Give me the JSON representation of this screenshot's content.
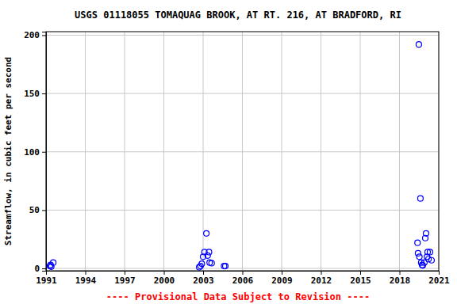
{
  "chart_data": {
    "type": "scatter",
    "title": "USGS 01118055 TOMAQUAG BROOK, AT RT. 216, AT BRADFORD, RI",
    "y_label": "Streamflow, in cubic feet per second",
    "annotations": [
      "---- Provisional Data Subject to Revision ----"
    ],
    "x": [
      1991.3,
      1991.35,
      1991.4,
      1991.55,
      2002.7,
      2002.8,
      2002.9,
      2003.0,
      2003.1,
      2003.25,
      2003.35,
      2003.45,
      2003.5,
      2003.65,
      2004.6,
      2004.7,
      2019.38,
      2019.42,
      2019.48,
      2019.52,
      2019.6,
      2019.66,
      2019.73,
      2019.78,
      2019.9,
      2019.97,
      2020.03,
      2020.1,
      2020.15,
      2020.22,
      2020.33,
      2020.45
    ],
    "values": [
      2,
      3,
      1.5,
      5,
      1,
      2,
      4,
      10,
      14,
      30,
      11,
      14,
      5,
      4.5,
      2,
      2,
      22,
      13,
      192,
      10,
      60,
      5,
      3,
      2.5,
      5,
      26,
      30,
      10,
      14,
      8,
      14,
      7
    ],
    "color": "#0000ff",
    "marker": "circle-open",
    "xlim": [
      1991,
      2021
    ],
    "xticks": [
      1991,
      1994,
      1997,
      2000,
      2003,
      2006,
      2009,
      2012,
      2015,
      2018,
      2021
    ],
    "ylim": [
      -2,
      203
    ],
    "yticks": [
      0,
      50,
      100,
      150,
      200
    ],
    "grid": true
  }
}
